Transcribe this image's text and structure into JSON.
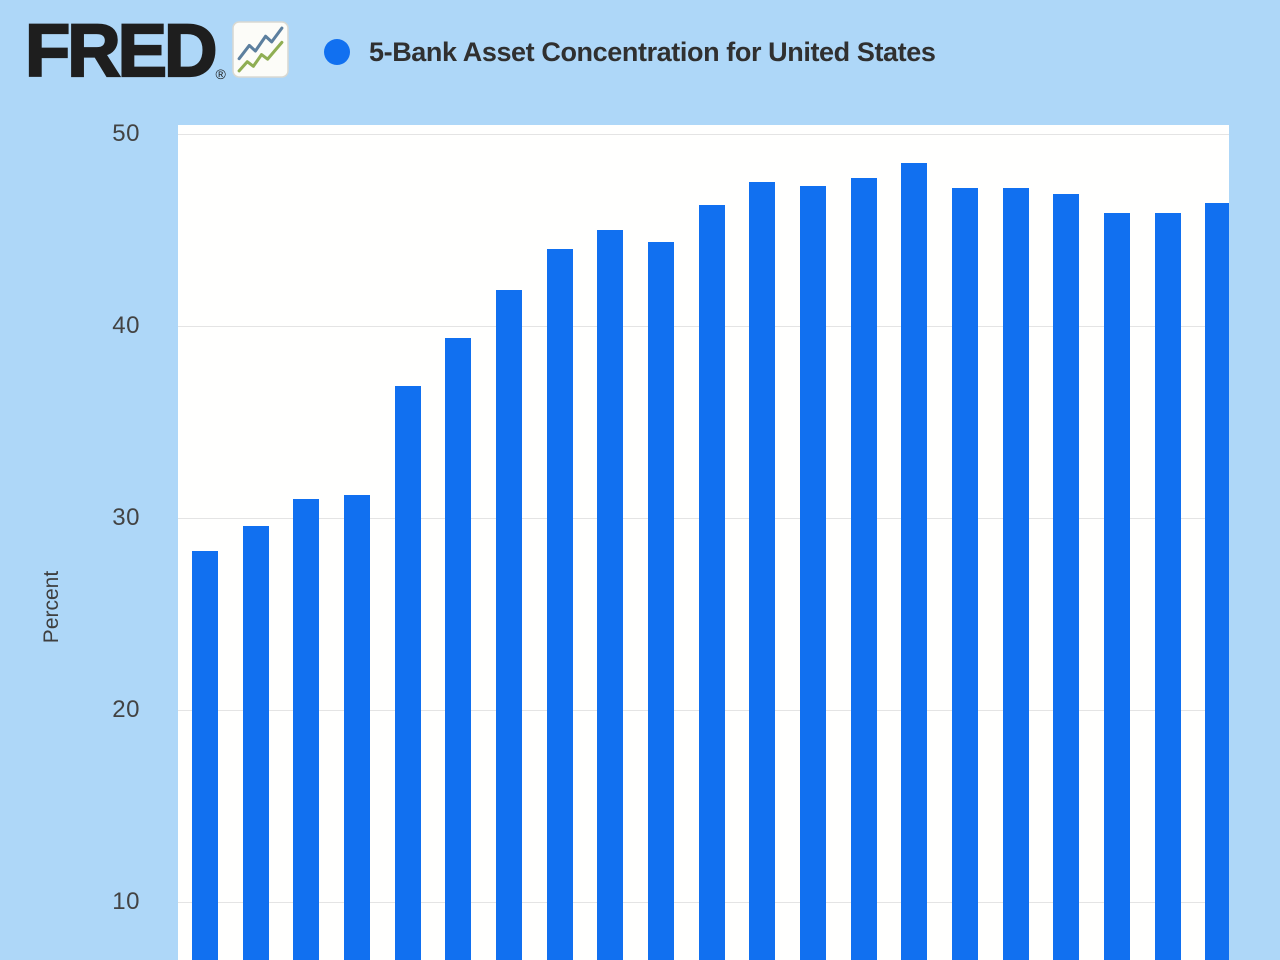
{
  "header": {
    "logo_text": "FRED",
    "registered_mark": "®",
    "title": "5-Bank Asset Concentration for United States"
  },
  "colors": {
    "page_bg": "#aed7f8",
    "plot_bg": "#fffffe",
    "bar": "#1170f0",
    "legend_dot": "#1170f0",
    "gridline": "#e4e4e4",
    "logo_color": "#1e1e1e",
    "title_text": "#303030",
    "axis_text": "#434343",
    "logo_icon_line_blue": "#5c7f9e",
    "logo_icon_line_green": "#8fae53"
  },
  "icons": {
    "logo_chart_icon": "line-chart-icon",
    "legend_marker": "series-legend-dot"
  },
  "chart_data": {
    "type": "bar",
    "title": "5-Bank Asset Concentration for United States",
    "ylabel": "Percent",
    "yticks": [
      50,
      40,
      30,
      20,
      10
    ],
    "grid": true,
    "legend_position": "top",
    "n_bars": 21,
    "x_tick_labels_visible": false,
    "values": [
      28.3,
      29.6,
      31.0,
      31.2,
      36.9,
      39.4,
      41.9,
      44.0,
      45.0,
      44.4,
      46.3,
      47.5,
      47.3,
      47.7,
      48.5,
      47.2,
      47.2,
      46.9,
      45.9,
      45.9,
      46.4
    ]
  }
}
